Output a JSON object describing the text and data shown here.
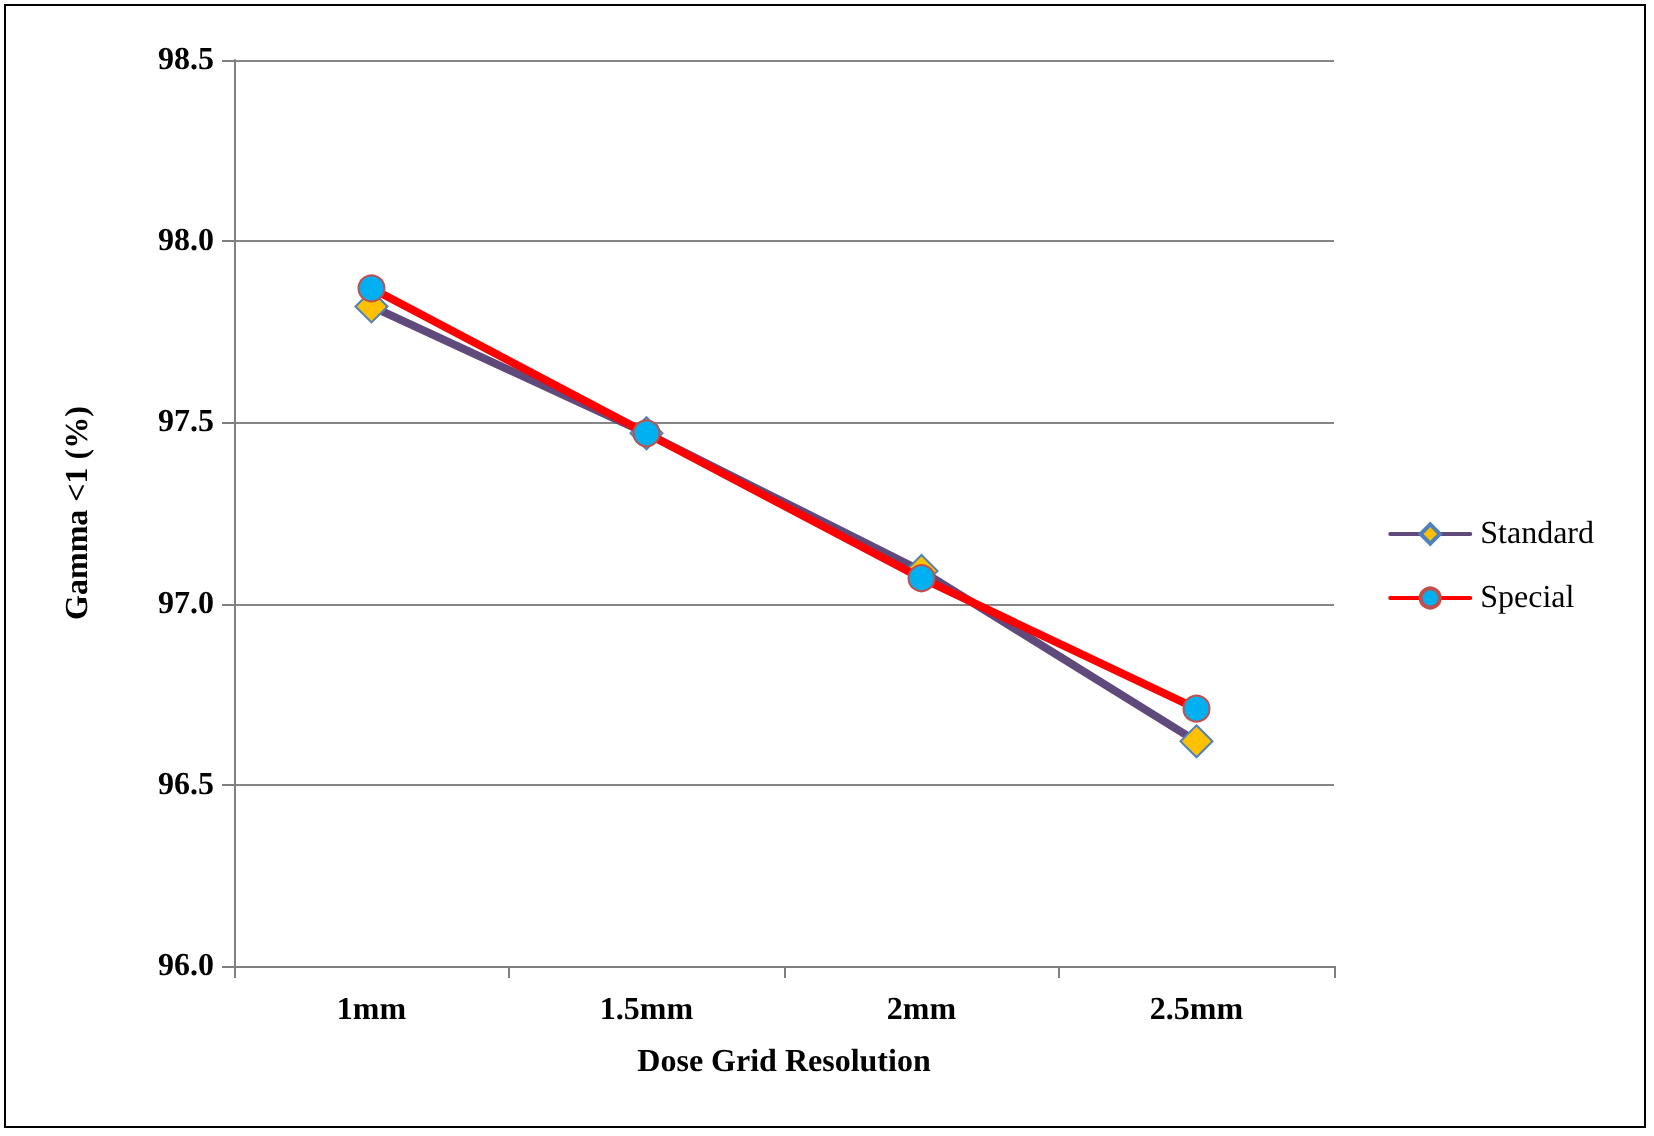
{
  "chart_data": {
    "type": "line",
    "xlabel": "Dose Grid Resolution",
    "ylabel": "Gamma <1 (%)",
    "categories": [
      "1mm",
      "1.5mm",
      "2mm",
      "2.5mm"
    ],
    "series": [
      {
        "name": "Standard",
        "color": "#604a7b",
        "marker": "diamond",
        "values": [
          97.82,
          97.47,
          97.09,
          96.62
        ]
      },
      {
        "name": "Special",
        "color": "#ff0000",
        "marker": "circle",
        "values": [
          97.87,
          97.47,
          97.07,
          96.71
        ]
      }
    ],
    "ylim": [
      96.0,
      98.5
    ],
    "yticks": [
      {
        "value": 96.0,
        "label": "96.0"
      },
      {
        "value": 96.5,
        "label": "96.5"
      },
      {
        "value": 97.0,
        "label": "97.0"
      },
      {
        "value": 97.5,
        "label": "97.5"
      },
      {
        "value": 98.0,
        "label": "98.0"
      },
      {
        "value": 98.5,
        "label": "98.5"
      }
    ],
    "grid": "y",
    "legend": "right",
    "line_style": "solid"
  }
}
